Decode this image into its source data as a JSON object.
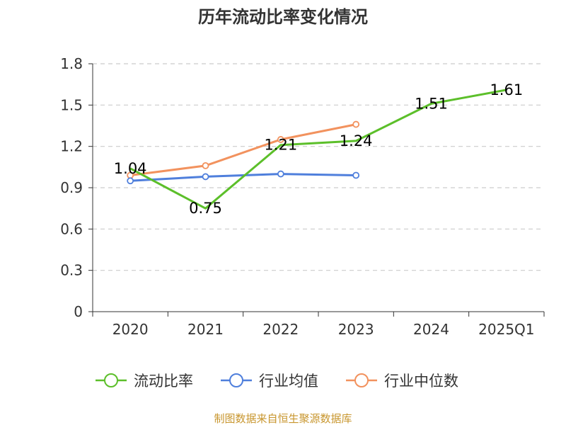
{
  "chart_data": {
    "type": "line",
    "title": "历年流动比率变化情况",
    "categories": [
      "2020",
      "2021",
      "2022",
      "2023",
      "2024",
      "2025Q1"
    ],
    "y_ticks": [
      "0",
      "0.3",
      "0.6",
      "0.9",
      "1.2",
      "1.5",
      "1.8"
    ],
    "ylim": [
      0,
      1.8
    ],
    "grid": "horizontal dashed",
    "legend_position": "bottom",
    "series": [
      {
        "name": "流动比率",
        "color": "#5cbf2a",
        "values": [
          1.04,
          0.75,
          1.21,
          1.24,
          1.51,
          1.61
        ],
        "labels": [
          "1.04",
          "0.75",
          "1.21",
          "1.24",
          "1.51",
          "1.61"
        ],
        "markers": false
      },
      {
        "name": "行业均值",
        "color": "#4f7fdc",
        "values": [
          0.95,
          0.98,
          1.0,
          0.99,
          null,
          null
        ],
        "markers": true
      },
      {
        "name": "行业中位数",
        "color": "#f2925e",
        "values": [
          0.99,
          1.06,
          1.25,
          1.36,
          null,
          null
        ],
        "markers": true
      }
    ]
  },
  "footer": "制图数据来自恒生聚源数据库"
}
